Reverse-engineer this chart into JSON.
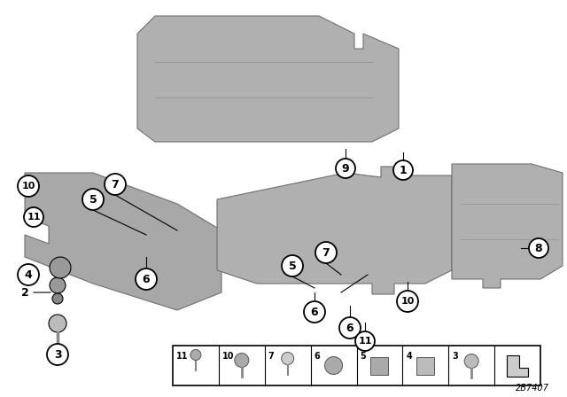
{
  "bg_color": "#ffffff",
  "panel_color": "#a8a8a8",
  "panel_edge_color": "#707070",
  "diagram_id": "2B7407",
  "badge_r": 0.022,
  "badge_fontsize": 9,
  "lw": 1.0
}
